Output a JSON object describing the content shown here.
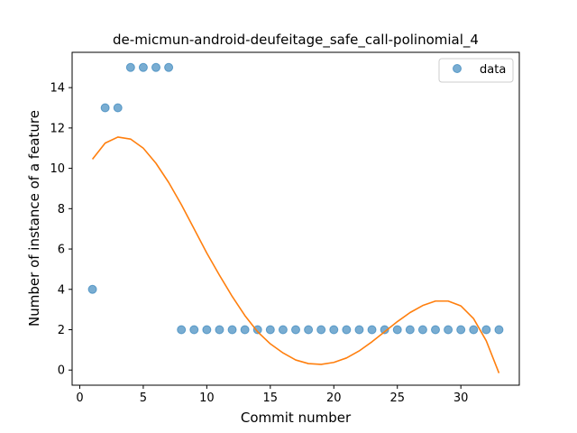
{
  "chart_data": {
    "type": "scatter",
    "title": "de-micmun-android-deufeitage_safe_call-polinomial_4",
    "xlabel": "Commit number",
    "ylabel": "Number of instance of a feature",
    "xlim": [
      -0.6,
      34.6
    ],
    "ylim": [
      -0.75,
      15.75
    ],
    "xticks": [
      0,
      5,
      10,
      15,
      20,
      25,
      30
    ],
    "yticks": [
      0,
      2,
      4,
      6,
      8,
      10,
      12,
      14
    ],
    "grid": false,
    "legend": {
      "placement": "top-right",
      "entries": [
        "data"
      ]
    },
    "colors": {
      "data": "#1f77b4",
      "fit": "#ff7f0e"
    },
    "series": [
      {
        "name": "data",
        "kind": "scatter",
        "x": [
          1,
          2,
          3,
          4,
          5,
          6,
          7,
          8,
          9,
          10,
          11,
          12,
          13,
          14,
          15,
          16,
          17,
          18,
          19,
          20,
          21,
          22,
          23,
          24,
          25,
          26,
          27,
          28,
          29,
          30,
          31,
          32,
          33
        ],
        "y": [
          4,
          13,
          13,
          15,
          15,
          15,
          15,
          2,
          2,
          2,
          2,
          2,
          2,
          2,
          2,
          2,
          2,
          2,
          2,
          2,
          2,
          2,
          2,
          2,
          2,
          2,
          2,
          2,
          2,
          2,
          2,
          2,
          2
        ]
      },
      {
        "kind": "line",
        "x": [
          1,
          2,
          3,
          4,
          5,
          6,
          7,
          8,
          9,
          10,
          11,
          12,
          13,
          14,
          15,
          16,
          17,
          18,
          19,
          20,
          21,
          22,
          23,
          24,
          25,
          26,
          27,
          28,
          29,
          30,
          31,
          32,
          33
        ],
        "y": [
          10.45,
          11.25,
          11.55,
          11.45,
          11.0,
          10.25,
          9.3,
          8.2,
          7.0,
          5.8,
          4.7,
          3.65,
          2.7,
          1.9,
          1.3,
          0.85,
          0.5,
          0.32,
          0.28,
          0.38,
          0.6,
          0.95,
          1.4,
          1.9,
          2.4,
          2.85,
          3.2,
          3.42,
          3.42,
          3.18,
          2.55,
          1.45,
          -0.15
        ]
      }
    ]
  }
}
